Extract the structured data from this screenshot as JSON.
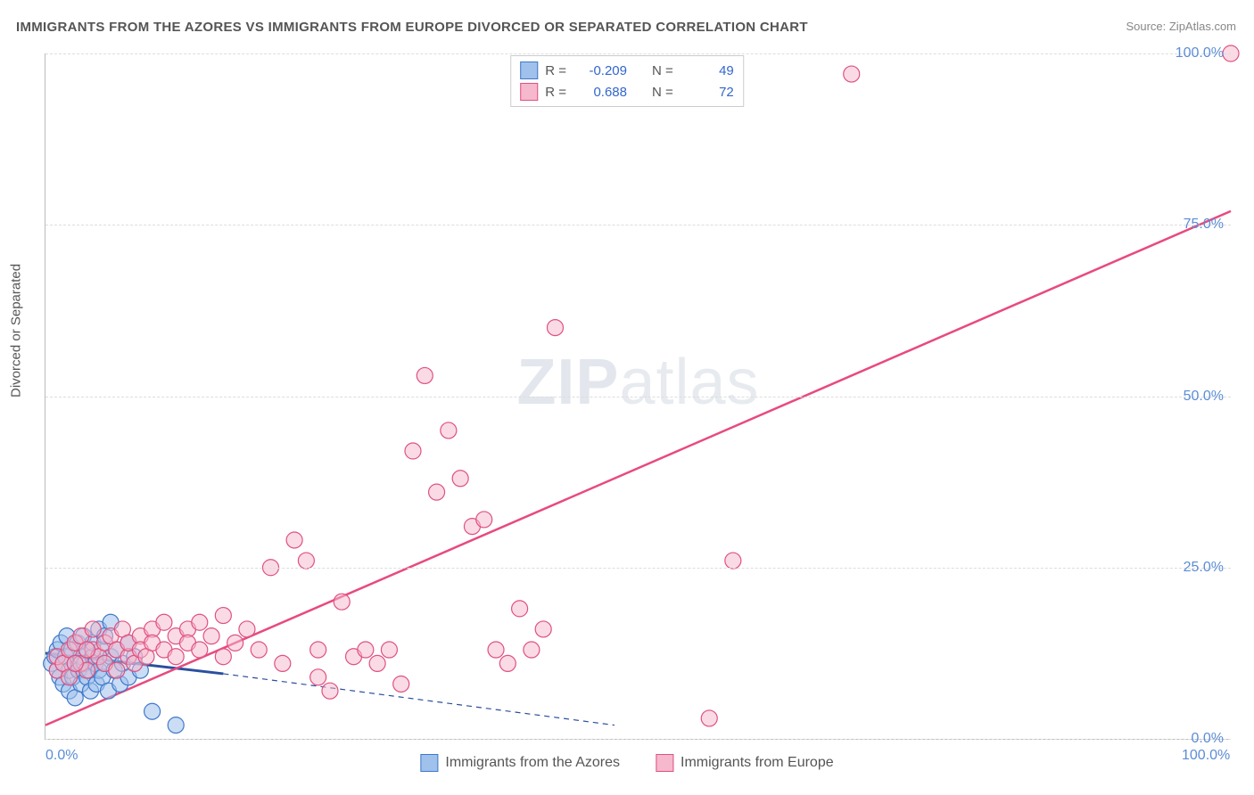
{
  "title": "IMMIGRANTS FROM THE AZORES VS IMMIGRANTS FROM EUROPE DIVORCED OR SEPARATED CORRELATION CHART",
  "source": "Source: ZipAtlas.com",
  "watermark_zip": "ZIP",
  "watermark_atlas": "atlas",
  "y_axis_label": "Divorced or Separated",
  "chart": {
    "type": "scatter",
    "xlim": [
      0,
      100
    ],
    "ylim": [
      0,
      100
    ],
    "y_ticks": [
      0,
      25,
      50,
      75,
      100
    ],
    "y_tick_labels": [
      "0.0%",
      "25.0%",
      "50.0%",
      "75.0%",
      "100.0%"
    ],
    "x_ticks": [
      0,
      100
    ],
    "x_tick_labels": [
      "0.0%",
      "100.0%"
    ],
    "grid_color": "#dddddd",
    "axis_color": "#bbbbbb",
    "background_color": "#ffffff",
    "tick_label_color": "#5b8dd6",
    "tick_fontsize": 16,
    "title_fontsize": 15,
    "title_color": "#555555"
  },
  "series": [
    {
      "name": "Immigrants from the Azores",
      "short": "azores",
      "marker_fill": "#9fc1ec",
      "marker_stroke": "#3f78c9",
      "marker_fill_opacity": 0.55,
      "marker_radius": 9,
      "regression": {
        "R": -0.209,
        "N": 49,
        "x1": 0,
        "y1": 12.5,
        "x2": 15,
        "y2": 9.5,
        "style": "solid",
        "color": "#2a4f9e",
        "width": 3,
        "dash_extend_x": 48,
        "dash_extend_y": 2
      },
      "points": [
        [
          0.5,
          11
        ],
        [
          0.8,
          12
        ],
        [
          1,
          10
        ],
        [
          1,
          13
        ],
        [
          1.2,
          9
        ],
        [
          1.3,
          14
        ],
        [
          1.5,
          11
        ],
        [
          1.5,
          8
        ],
        [
          1.7,
          12
        ],
        [
          1.8,
          15
        ],
        [
          2,
          10
        ],
        [
          2,
          7
        ],
        [
          2.2,
          13
        ],
        [
          2.3,
          9
        ],
        [
          2.5,
          11
        ],
        [
          2.5,
          6
        ],
        [
          2.7,
          14
        ],
        [
          2.8,
          10
        ],
        [
          3,
          12
        ],
        [
          3,
          8
        ],
        [
          3.2,
          15
        ],
        [
          3.3,
          11
        ],
        [
          3.5,
          9
        ],
        [
          3.5,
          13
        ],
        [
          3.7,
          10
        ],
        [
          3.8,
          7
        ],
        [
          4,
          12
        ],
        [
          4,
          14
        ],
        [
          4.2,
          11
        ],
        [
          4.3,
          8
        ],
        [
          4.5,
          16
        ],
        [
          4.5,
          10
        ],
        [
          4.7,
          13
        ],
        [
          4.8,
          9
        ],
        [
          5,
          11
        ],
        [
          5,
          15
        ],
        [
          5.3,
          7
        ],
        [
          5.5,
          12
        ],
        [
          5.8,
          10
        ],
        [
          6,
          13
        ],
        [
          6.3,
          8
        ],
        [
          6.5,
          11
        ],
        [
          7,
          14
        ],
        [
          7,
          9
        ],
        [
          7.5,
          12
        ],
        [
          8,
          10
        ],
        [
          9,
          4
        ],
        [
          11,
          2
        ],
        [
          5.5,
          17
        ]
      ]
    },
    {
      "name": "Immigrants from Europe",
      "short": "europe",
      "marker_fill": "#f5b8cc",
      "marker_stroke": "#e0517f",
      "marker_fill_opacity": 0.5,
      "marker_radius": 9,
      "regression": {
        "R": 0.688,
        "N": 72,
        "x1": 0,
        "y1": 2,
        "x2": 100,
        "y2": 77,
        "style": "solid",
        "color": "#e84a7e",
        "width": 2.5
      },
      "points": [
        [
          1,
          10
        ],
        [
          1,
          12
        ],
        [
          1.5,
          11
        ],
        [
          2,
          13
        ],
        [
          2,
          9
        ],
        [
          2.5,
          14
        ],
        [
          3,
          11
        ],
        [
          3,
          15
        ],
        [
          3.5,
          10
        ],
        [
          4,
          13
        ],
        [
          4,
          16
        ],
        [
          4.5,
          12
        ],
        [
          5,
          14
        ],
        [
          5,
          11
        ],
        [
          5.5,
          15
        ],
        [
          6,
          13
        ],
        [
          6,
          10
        ],
        [
          6.5,
          16
        ],
        [
          7,
          12
        ],
        [
          7,
          14
        ],
        [
          7.5,
          11
        ],
        [
          8,
          15
        ],
        [
          8,
          13
        ],
        [
          8.5,
          12
        ],
        [
          9,
          16
        ],
        [
          9,
          14
        ],
        [
          10,
          13
        ],
        [
          10,
          17
        ],
        [
          11,
          15
        ],
        [
          11,
          12
        ],
        [
          12,
          16
        ],
        [
          12,
          14
        ],
        [
          13,
          13
        ],
        [
          13,
          17
        ],
        [
          14,
          15
        ],
        [
          15,
          12
        ],
        [
          15,
          18
        ],
        [
          16,
          14
        ],
        [
          17,
          16
        ],
        [
          18,
          13
        ],
        [
          19,
          25
        ],
        [
          20,
          11
        ],
        [
          21,
          29
        ],
        [
          22,
          26
        ],
        [
          23,
          9
        ],
        [
          23,
          13
        ],
        [
          24,
          7
        ],
        [
          25,
          20
        ],
        [
          26,
          12
        ],
        [
          27,
          13
        ],
        [
          28,
          11
        ],
        [
          29,
          13
        ],
        [
          30,
          8
        ],
        [
          31,
          42
        ],
        [
          32,
          53
        ],
        [
          33,
          36
        ],
        [
          34,
          45
        ],
        [
          35,
          38
        ],
        [
          36,
          31
        ],
        [
          37,
          32
        ],
        [
          38,
          13
        ],
        [
          39,
          11
        ],
        [
          40,
          19
        ],
        [
          41,
          13
        ],
        [
          42,
          16
        ],
        [
          43,
          60
        ],
        [
          56,
          3
        ],
        [
          58,
          26
        ],
        [
          68,
          97
        ],
        [
          100,
          100
        ],
        [
          2.5,
          11
        ],
        [
          3.5,
          13
        ]
      ]
    }
  ],
  "legend_top": {
    "border_color": "#cccccc",
    "rows": [
      {
        "swatch_fill": "#9fc1ec",
        "swatch_stroke": "#3f78c9",
        "R_label": "R =",
        "R_value": "-0.209",
        "N_label": "N =",
        "N_value": "49"
      },
      {
        "swatch_fill": "#f5b8cc",
        "swatch_stroke": "#e0517f",
        "R_label": "R =",
        "R_value": "0.688",
        "N_label": "N =",
        "N_value": "72"
      }
    ]
  },
  "legend_bottom": {
    "items": [
      {
        "swatch_fill": "#9fc1ec",
        "swatch_stroke": "#3f78c9",
        "label": "Immigrants from the Azores"
      },
      {
        "swatch_fill": "#f5b8cc",
        "swatch_stroke": "#e0517f",
        "label": "Immigrants from Europe"
      }
    ]
  }
}
